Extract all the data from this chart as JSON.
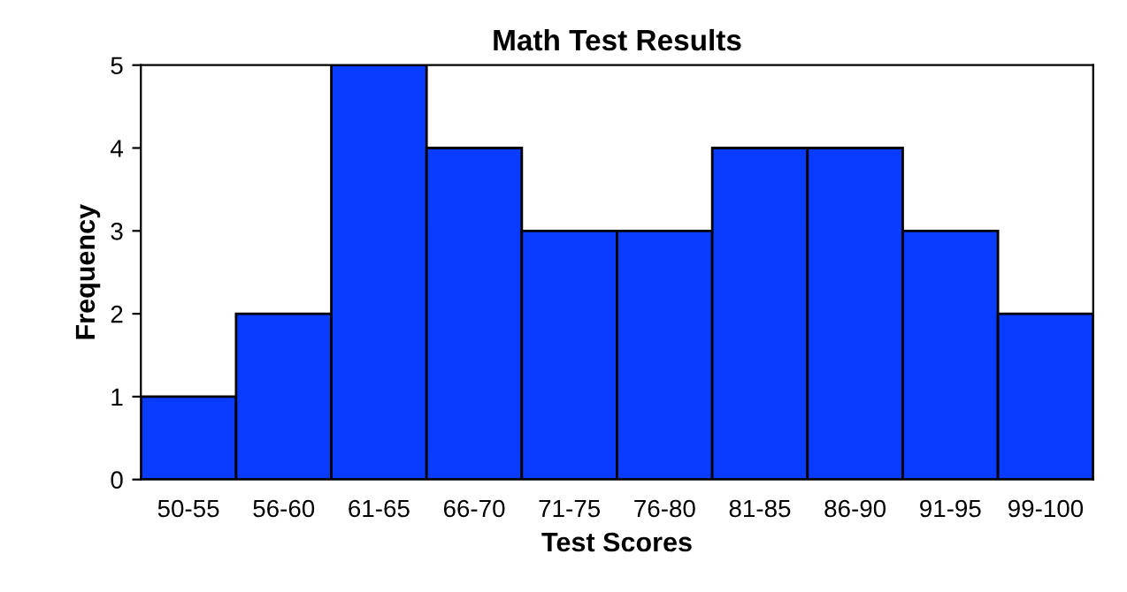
{
  "chart_data": {
    "type": "bar",
    "title": "Math Test Results",
    "xlabel": "Test Scores",
    "ylabel": "Frequency",
    "categories": [
      "50-55",
      "56-60",
      "61-65",
      "66-70",
      "71-75",
      "76-80",
      "81-85",
      "86-90",
      "91-95",
      "99-100"
    ],
    "values": [
      1,
      2,
      5,
      4,
      3,
      3,
      4,
      4,
      3,
      2
    ],
    "color": "#0a3cff",
    "ylim": [
      0,
      5
    ],
    "yticks": [
      0,
      1,
      2,
      3,
      4,
      5
    ],
    "grid": false,
    "legend": false
  }
}
